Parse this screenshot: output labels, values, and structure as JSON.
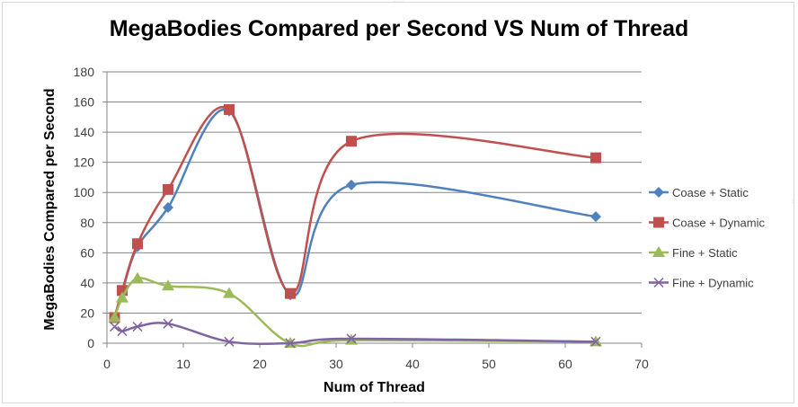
{
  "chart_data": {
    "type": "scatter",
    "title": "MegaBodies Compared per Second VS Num of Thread",
    "xlabel": "Num of Thread",
    "ylabel": "MegaBodies Compared per Second",
    "xlim": [
      0,
      70
    ],
    "ylim": [
      0,
      180
    ],
    "x_ticks": [
      0,
      10,
      20,
      30,
      40,
      50,
      60,
      70
    ],
    "y_ticks": [
      0,
      20,
      40,
      60,
      80,
      100,
      120,
      140,
      160,
      180
    ],
    "grid": true,
    "legend_position": "right",
    "series": [
      {
        "name": "Coase + Static",
        "color": "#4f81bd",
        "marker": "diamond",
        "x": [
          1,
          2,
          4,
          8,
          16,
          24,
          32,
          64
        ],
        "y": [
          17,
          34,
          64,
          90,
          154,
          32,
          105,
          84
        ]
      },
      {
        "name": "Coase + Dynamic",
        "color": "#c0504d",
        "marker": "square",
        "x": [
          1,
          2,
          4,
          8,
          16,
          24,
          32,
          64
        ],
        "y": [
          17,
          35,
          66,
          102,
          155,
          33,
          134,
          123
        ]
      },
      {
        "name": "Fine + Static",
        "color": "#9bbb59",
        "marker": "triangle",
        "x": [
          1,
          2,
          4,
          8,
          16,
          24,
          32,
          64
        ],
        "y": [
          17,
          30,
          43,
          38,
          33,
          0,
          2,
          1
        ]
      },
      {
        "name": "Fine + Dynamic",
        "color": "#8064a2",
        "marker": "x",
        "x": [
          1,
          2,
          4,
          8,
          16,
          24,
          32,
          64
        ],
        "y": [
          11,
          8,
          11,
          13,
          1,
          0,
          3,
          1
        ]
      }
    ]
  }
}
